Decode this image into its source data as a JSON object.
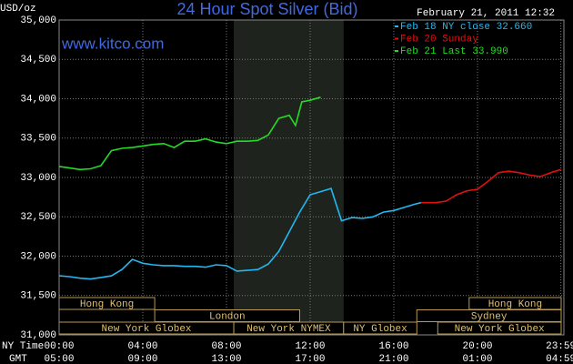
{
  "chart_data": {
    "type": "line",
    "title": "24 Hour Spot Silver (Bid)",
    "subtitle": "www.kitco.com",
    "timestamp": "February 21, 2011 12:32",
    "y_label": "USD/oz",
    "x_label": "NY Time",
    "x2_label": "GMT",
    "xlim": [
      0,
      24
    ],
    "ylim": [
      31000,
      35000
    ],
    "grid": true,
    "yticks": [
      {
        "value": 31000,
        "label": "31,000"
      },
      {
        "value": 31500,
        "label": "31,500"
      },
      {
        "value": 32000,
        "label": "32,000"
      },
      {
        "value": 32500,
        "label": "32,500"
      },
      {
        "value": 33000,
        "label": "33,000"
      },
      {
        "value": 33500,
        "label": "33,500"
      },
      {
        "value": 34000,
        "label": "34,000"
      },
      {
        "value": 34500,
        "label": "34,500"
      },
      {
        "value": 35000,
        "label": "35,000"
      }
    ],
    "xticks": [
      {
        "value": 0,
        "label": "00:00"
      },
      {
        "value": 4,
        "label": "04:00"
      },
      {
        "value": 8,
        "label": "08:00"
      },
      {
        "value": 12,
        "label": "12:00"
      },
      {
        "value": 16,
        "label": "16:00"
      },
      {
        "value": 20,
        "label": "20:00"
      },
      {
        "value": 23.983,
        "label": "23:59"
      }
    ],
    "x2ticks": [
      {
        "value": 0,
        "label": "05:00"
      },
      {
        "value": 4,
        "label": "09:00"
      },
      {
        "value": 8,
        "label": "13:00"
      },
      {
        "value": 12,
        "label": "17:00"
      },
      {
        "value": 16,
        "label": "21:00"
      },
      {
        "value": 20,
        "label": "01:00"
      },
      {
        "value": 23.983,
        "label": "04:59"
      }
    ],
    "sessions": [
      [
        {
          "label": "Hong Kong",
          "start": 0,
          "end": 4.57
        },
        {
          "label": "Hong Kong",
          "start": 19.6,
          "end": 24
        }
      ],
      [
        {
          "label": "London",
          "start": 4.57,
          "end": 11.5
        },
        {
          "label": "Sydney",
          "start": 17.1,
          "end": 24
        }
      ],
      [
        {
          "label": "New York Globex",
          "start": 0,
          "end": 8.35
        },
        {
          "label": "New York NYMEX",
          "start": 8.35,
          "end": 13.6
        },
        {
          "label": "NY Globex",
          "start": 13.6,
          "end": 17.1
        },
        {
          "label": "New York Globex",
          "start": 18.1,
          "end": 24
        }
      ]
    ],
    "highlight": {
      "start": 8.35,
      "end": 13.6
    },
    "series": [
      {
        "name": "Feb 18 NY close 32.660",
        "color": "#22b8f0",
        "x": [
          0,
          0.5,
          1,
          1.5,
          2,
          2.5,
          3,
          3.5,
          4,
          4.5,
          5,
          5.5,
          6,
          6.5,
          7,
          7.5,
          8,
          8.5,
          9,
          9.5,
          10,
          10.5,
          11,
          11.5,
          12,
          12.5,
          13,
          13.5,
          14,
          14.5,
          15,
          15.5,
          16,
          16.5,
          17,
          17.3
        ],
        "values": [
          31750,
          31740,
          31720,
          31710,
          31730,
          31750,
          31830,
          31960,
          31910,
          31890,
          31880,
          31880,
          31870,
          31870,
          31860,
          31890,
          31880,
          31810,
          31820,
          31830,
          31900,
          32060,
          32310,
          32560,
          32780,
          32820,
          32860,
          32450,
          32490,
          32480,
          32500,
          32560,
          32580,
          32620,
          32660,
          32680
        ]
      },
      {
        "name": "Feb 20 Sunday",
        "color": "#e01010",
        "x": [
          17.3,
          17.5,
          18,
          18.5,
          19,
          19.5,
          20,
          20.5,
          21,
          21.5,
          22,
          22.5,
          23,
          23.5,
          23.983
        ],
        "values": [
          32680,
          32680,
          32680,
          32700,
          32780,
          32830,
          32850,
          32950,
          33060,
          33080,
          33060,
          33030,
          33010,
          33060,
          33100
        ]
      },
      {
        "name": "Feb 21 Last 33.990",
        "color": "#22dd22",
        "x": [
          0,
          0.5,
          1,
          1.5,
          2,
          2.5,
          3,
          3.5,
          4,
          4.5,
          5,
          5.5,
          6,
          6.5,
          7,
          7.5,
          8,
          8.5,
          9,
          9.5,
          10,
          10.5,
          11,
          11.3,
          11.6,
          12,
          12.5
        ],
        "values": [
          33140,
          33120,
          33100,
          33110,
          33150,
          33340,
          33370,
          33380,
          33400,
          33420,
          33430,
          33380,
          33460,
          33460,
          33490,
          33450,
          33430,
          33460,
          33460,
          33470,
          33540,
          33750,
          33790,
          33660,
          33960,
          33980,
          34020
        ]
      }
    ]
  }
}
